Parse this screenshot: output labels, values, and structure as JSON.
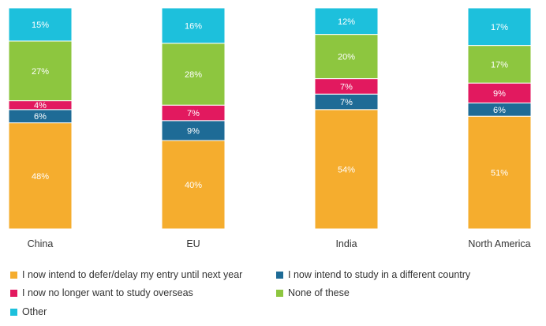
{
  "chart_data": {
    "type": "bar",
    "stacked": true,
    "orientation": "vertical",
    "percent": true,
    "categories": [
      "China",
      "EU",
      "India",
      "North America"
    ],
    "series": [
      {
        "name": "I now intend to defer/delay my entry until next year",
        "color": "#F5AD2E",
        "values": [
          48,
          40,
          54,
          51
        ]
      },
      {
        "name": "I now intend to study in a different country",
        "color": "#1E6B96",
        "values": [
          6,
          9,
          7,
          6
        ]
      },
      {
        "name": "I now no longer want to study overseas",
        "color": "#E2195F",
        "values": [
          4,
          7,
          7,
          9
        ]
      },
      {
        "name": "None of these",
        "color": "#8DC63F",
        "values": [
          27,
          28,
          20,
          17
        ]
      },
      {
        "name": "Other",
        "color": "#1DC0DC",
        "values": [
          15,
          16,
          12,
          17
        ]
      }
    ],
    "value_label_suffix": "%",
    "ylim": [
      0,
      100
    ],
    "grid": false,
    "legend_position": "bottom",
    "title": "",
    "xlabel": "",
    "ylabel": ""
  }
}
